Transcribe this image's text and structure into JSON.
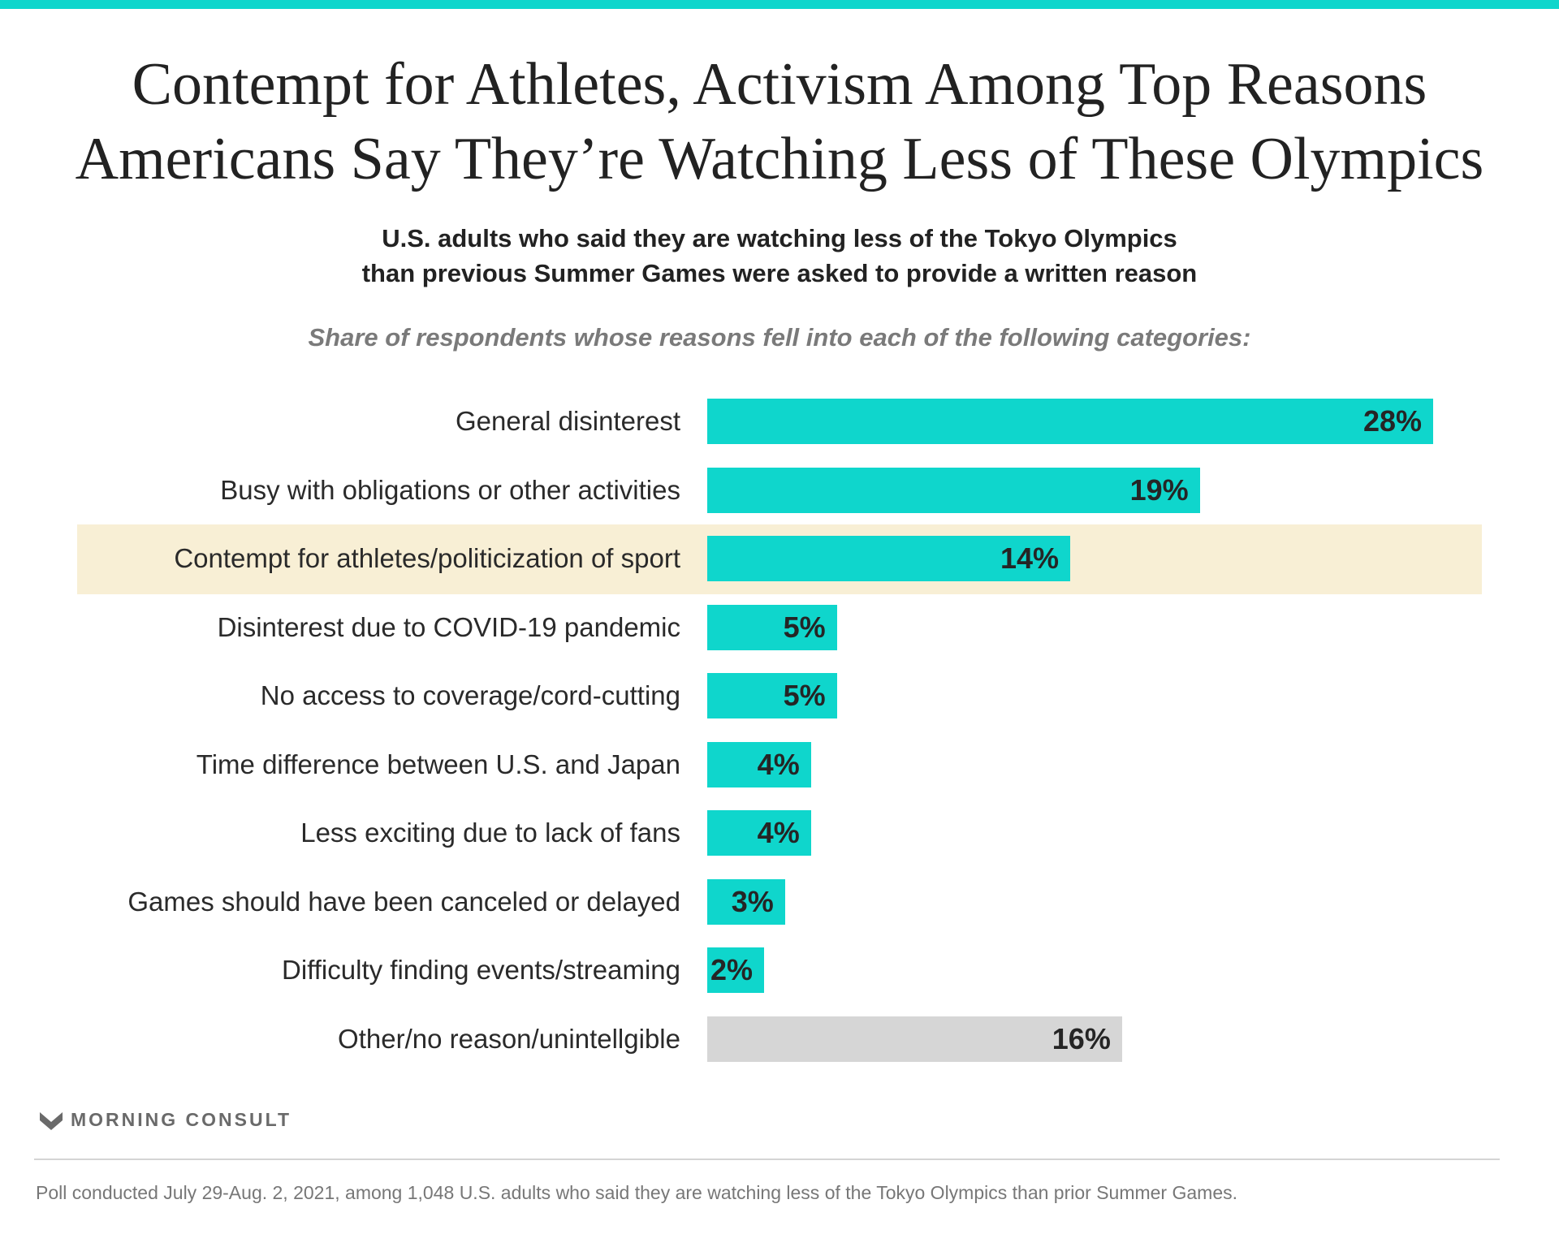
{
  "chart_data": {
    "type": "bar",
    "orientation": "horizontal",
    "title": "Contempt for Athletes, Activism Among Top Reasons Americans Say They’re Watching Less of These Olympics",
    "title_lines": [
      "Contempt for Athletes, Activism Among Top Reasons",
      "Americans Say They’re Watching Less of These Olympics"
    ],
    "subtitle_lines": [
      "U.S. adults who said they are watching less of the Tokyo Olympics",
      "than previous Summer Games were asked to provide a written reason"
    ],
    "description": "Share of respondents whose reasons fell into each of the following categories:",
    "categories": [
      "General disinterest",
      "Busy with obligations or other activities",
      "Contempt for athletes/politicization of sport",
      "Disinterest due to COVID-19 pandemic",
      "No access to coverage/cord-cutting",
      "Time difference between U.S. and Japan",
      "Less exciting due to lack of fans",
      "Games should have been canceled or delayed",
      "Difficulty finding events/streaming",
      "Other/no reason/unintellgible"
    ],
    "values": [
      28,
      19,
      14,
      5,
      5,
      4,
      4,
      3,
      2,
      16
    ],
    "value_labels": [
      "28%",
      "19%",
      "14%",
      "5%",
      "5%",
      "4%",
      "4%",
      "3%",
      "2%",
      "16%"
    ],
    "highlighted_index": 2,
    "unit": "%",
    "xlim": [
      0,
      28
    ]
  },
  "colors": {
    "accent": "#0fd6cc",
    "other": "#d6d6d6",
    "highlight": "#f8efd5"
  },
  "brand": "MORNING CONSULT",
  "footer": "Poll conducted July 29-Aug. 2, 2021, among 1,048 U.S. adults who said they are watching less of the Tokyo Olympics than prior Summer Games."
}
